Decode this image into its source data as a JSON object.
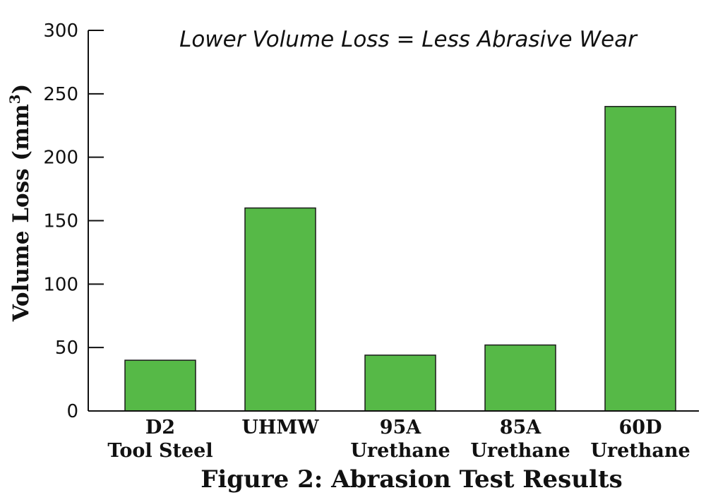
{
  "chart_data": {
    "type": "bar",
    "annotation": "Lower Volume Loss = Less Abrasive Wear",
    "ylabel": "Volume Loss (mm",
    "ylabel_superscript": "3",
    "ylabel_close": ")",
    "xlabel": "",
    "title": "Figure 2: Abrasion Test Results",
    "categories": [
      [
        "D2",
        "Tool Steel"
      ],
      [
        "UHMW"
      ],
      [
        "95A",
        "Urethane"
      ],
      [
        "85A",
        "Urethane"
      ],
      [
        "60D",
        "Urethane"
      ]
    ],
    "values": [
      40,
      160,
      44,
      52,
      240
    ],
    "ylim": [
      0,
      300
    ],
    "yticks": [
      0,
      50,
      100,
      150,
      200,
      250,
      300
    ],
    "grid": false,
    "bar_color": "#56b947",
    "bar_edge_color": "#1a1a1a"
  }
}
